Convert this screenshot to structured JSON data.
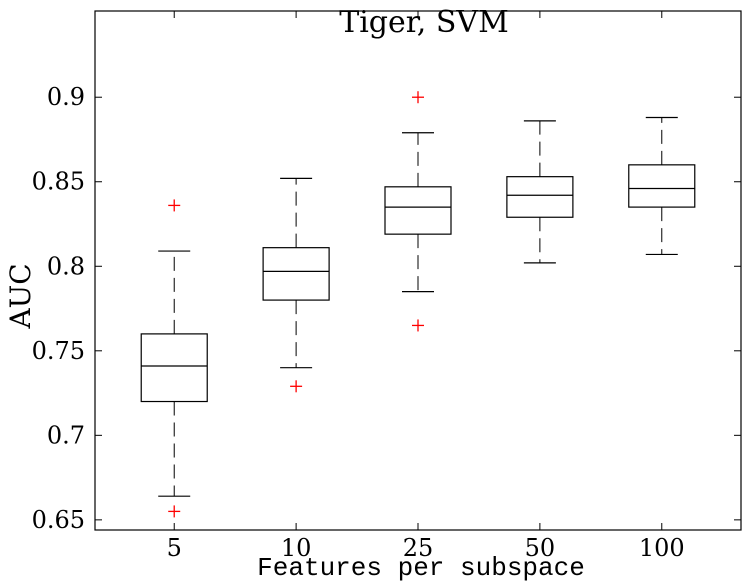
{
  "chart_data": {
    "type": "box",
    "title": "Tiger, SVM",
    "xlabel": "Features per subspace",
    "ylabel": "AUC",
    "ylim": [
      0.644,
      0.951
    ],
    "categories": [
      "5",
      "10",
      "25",
      "50",
      "100"
    ],
    "yticks": [
      0.65,
      0.7,
      0.75,
      0.8,
      0.85,
      0.9
    ],
    "ytick_labels": [
      "0.65",
      "0.7",
      "0.75",
      "0.8",
      "0.85",
      "0.9"
    ],
    "boxes": [
      {
        "category": "5",
        "whisker_low": 0.664,
        "q1": 0.72,
        "median": 0.741,
        "q3": 0.76,
        "whisker_high": 0.809,
        "outliers": [
          0.655,
          0.836
        ]
      },
      {
        "category": "10",
        "whisker_low": 0.74,
        "q1": 0.78,
        "median": 0.797,
        "q3": 0.811,
        "whisker_high": 0.852,
        "outliers": [
          0.729
        ]
      },
      {
        "category": "25",
        "whisker_low": 0.785,
        "q1": 0.819,
        "median": 0.835,
        "q3": 0.847,
        "whisker_high": 0.879,
        "outliers": [
          0.765,
          0.9
        ]
      },
      {
        "category": "50",
        "whisker_low": 0.802,
        "q1": 0.829,
        "median": 0.842,
        "q3": 0.853,
        "whisker_high": 0.886,
        "outliers": []
      },
      {
        "category": "100",
        "whisker_low": 0.807,
        "q1": 0.835,
        "median": 0.846,
        "q3": 0.86,
        "whisker_high": 0.888,
        "outliers": []
      }
    ],
    "colors": {
      "box": "#000000",
      "outlier": "#ff0000",
      "axes": "#000000"
    },
    "grid": false
  }
}
